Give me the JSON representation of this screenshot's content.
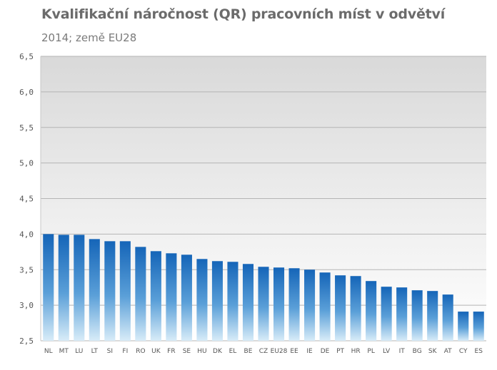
{
  "chart_data": {
    "type": "bar",
    "title": "Kvalifikační náročnost (QR) pracovních míst v odvětví",
    "subtitle": "2014; země EU28",
    "xlabel": "",
    "ylabel": "",
    "ylim": [
      2.5,
      6.5
    ],
    "yticks": [
      "2,5",
      "3,0",
      "3,5",
      "4,0",
      "4,5",
      "5,0",
      "5,5",
      "6,0",
      "6,5"
    ],
    "ytick_values": [
      2.5,
      3.0,
      3.5,
      4.0,
      4.5,
      5.0,
      5.5,
      6.0,
      6.5
    ],
    "grid": true,
    "categories": [
      "NL",
      "MT",
      "LU",
      "LT",
      "SI",
      "FI",
      "RO",
      "UK",
      "FR",
      "SE",
      "HU",
      "DK",
      "EL",
      "BE",
      "CZ",
      "EU28",
      "EE",
      "IE",
      "DE",
      "PT",
      "HR",
      "PL",
      "LV",
      "IT",
      "BG",
      "SK",
      "AT",
      "CY",
      "ES"
    ],
    "values": [
      4.0,
      3.99,
      3.99,
      3.93,
      3.9,
      3.9,
      3.82,
      3.76,
      3.73,
      3.71,
      3.65,
      3.62,
      3.61,
      3.58,
      3.54,
      3.53,
      3.52,
      3.5,
      3.46,
      3.42,
      3.41,
      3.34,
      3.26,
      3.25,
      3.21,
      3.2,
      3.15,
      2.91,
      2.91
    ],
    "colors": {
      "bar_top": "#1565b8",
      "bar_bottom": "#d8ecf8",
      "grid": "#b5b5b5",
      "plot_bg_top": "#d9d9d9",
      "plot_bg_bottom": "#ffffff"
    }
  }
}
